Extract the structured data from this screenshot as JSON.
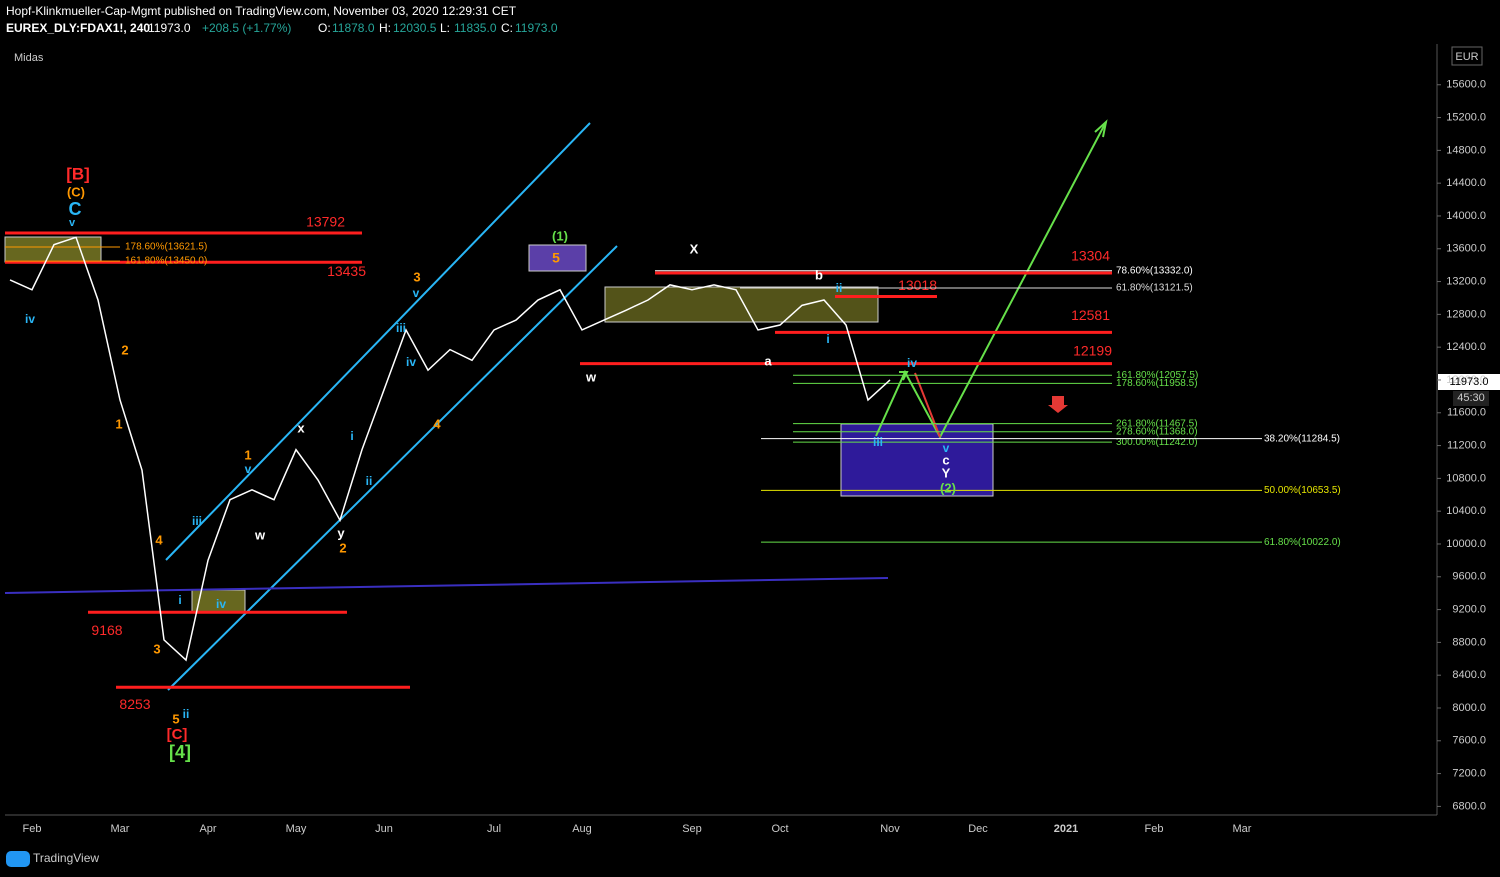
{
  "chart_data": {
    "type": "line",
    "title": "Hopf-Klinkmueller-Cap-Mgmt published on TradingView.com, November 03, 2020 12:29:31 CET",
    "symbol": "EUREX_DLY:FDAX1!, 240",
    "last": "11973.0",
    "change": "+208.5 (+1.77%)",
    "ohlc": [
      {
        "key": "O:",
        "val": "11878.0"
      },
      {
        "key": "H:",
        "val": "12030.5"
      },
      {
        "key": "L:",
        "val": "11835.0"
      },
      {
        "key": "C:",
        "val": "11973.0"
      }
    ],
    "indicator": "Midas",
    "currency": "EUR",
    "price_tag": {
      "value": 11973,
      "label": "11973.0"
    },
    "countdown": "45:30",
    "brand": "TradingView",
    "color": "#ffffff",
    "categories": [
      null,
      "Feb",
      null,
      null,
      null,
      "Mar",
      null,
      null,
      null,
      "Apr",
      null,
      null,
      null,
      "May",
      null,
      null,
      null,
      "Jun",
      null,
      null,
      null,
      null,
      "Jul",
      null,
      null,
      null,
      "Aug",
      null,
      null,
      null,
      null,
      "Sep",
      null,
      null,
      null,
      "Oct",
      null,
      null,
      null,
      null,
      "Nov",
      null,
      null,
      null,
      "Dec",
      null,
      null,
      null,
      "2021",
      null,
      null,
      null,
      "Feb",
      null,
      null,
      null,
      "Mar",
      null,
      null,
      null,
      null,
      null,
      null,
      null,
      null
    ],
    "values": [
      13220,
      13100,
      13650,
      13740,
      12975,
      11756,
      10900,
      8830,
      8585,
      9800,
      10540,
      10660,
      10540,
      11150,
      10780,
      10290,
      11150,
      11880,
      12610,
      12120,
      12370,
      12240,
      12610,
      12730,
      12975,
      13100,
      12610,
      12730,
      12850,
      12975,
      13160,
      13100,
      13160,
      13100,
      12610,
      12670,
      12910,
      12975,
      12670,
      11756,
      12000,
      null,
      null,
      null,
      null,
      null,
      null,
      null,
      null,
      null,
      null,
      null,
      null,
      null,
      null,
      null,
      null,
      null,
      null,
      null,
      null,
      null,
      null,
      null,
      null
    ],
    "ylim": [
      6695,
      16097
    ],
    "yticks": [
      {
        "value": 6800,
        "label": "6800.0"
      },
      {
        "value": 7200,
        "label": "7200.0"
      },
      {
        "value": 7600,
        "label": "7600.0"
      },
      {
        "value": 8000,
        "label": "8000.0"
      },
      {
        "value": 8400,
        "label": "8400.0"
      },
      {
        "value": 8800,
        "label": "8800.0"
      },
      {
        "value": 9200,
        "label": "9200.0"
      },
      {
        "value": 9600,
        "label": "9600.0"
      },
      {
        "value": 10000,
        "label": "10000.0"
      },
      {
        "value": 10400,
        "label": "10400.0"
      },
      {
        "value": 10800,
        "label": "10800.0"
      },
      {
        "value": 11200,
        "label": "11200.0"
      },
      {
        "value": 11600,
        "label": "11600.0"
      },
      {
        "value": 12000,
        "label": "12000.0"
      },
      {
        "value": 12400,
        "label": "12400.0"
      },
      {
        "value": 12800,
        "label": "12800.0"
      },
      {
        "value": 13200,
        "label": "13200.0"
      },
      {
        "value": 13600,
        "label": "13600.0"
      },
      {
        "value": 14000,
        "label": "14000.0"
      },
      {
        "value": 14400,
        "label": "14400.0"
      },
      {
        "value": 14800,
        "label": "14800.0"
      },
      {
        "value": 15200,
        "label": "15200.0"
      },
      {
        "value": 15600,
        "label": "15600.0"
      }
    ],
    "levels": [
      13792,
      13435,
      13304,
      13018,
      12581,
      12199,
      9168,
      8253
    ],
    "fib_levels": [
      {
        "value": 13621.5,
        "label": "178.60%(13621.5)"
      },
      {
        "value": 13450,
        "label": "161.80%(13450.0)"
      },
      {
        "value": 13332,
        "label": "78.60%(13332.0)"
      },
      {
        "value": 13121.5,
        "label": "61.80%(13121.5)"
      },
      {
        "value": 12057.5,
        "label": "161.80%(12057.5)"
      },
      {
        "value": 11958.5,
        "label": "178.60%(11958.5)"
      },
      {
        "value": 11467.5,
        "label": "261.80%(11467.5)"
      },
      {
        "value": 11368,
        "label": "278.60%(11368.0)"
      },
      {
        "value": 11242,
        "label": "300.00%(11242.0)"
      },
      {
        "value": 11284.5,
        "label": "38.20%(11284.5)"
      },
      {
        "value": 10653.5,
        "label": "50.00%(10653.5)"
      },
      {
        "value": 10022,
        "label": "61.80%(10022.0)"
      }
    ],
    "wave_labels": [
      "[B]",
      "(C)",
      "C",
      "v",
      "iv",
      "2",
      "1",
      "4",
      "3",
      "5",
      "ii",
      "[C]",
      "[4]",
      "i",
      "iii",
      "iv",
      "1",
      "v",
      "w",
      "x",
      "y",
      "2",
      "i",
      "ii",
      "iii",
      "iv",
      "3",
      "v",
      "4",
      "(1)",
      "5",
      "w",
      "X",
      "a",
      "b",
      "ii",
      "i",
      "iii",
      "iv",
      "v",
      "c",
      "Y",
      "(2)"
    ]
  }
}
